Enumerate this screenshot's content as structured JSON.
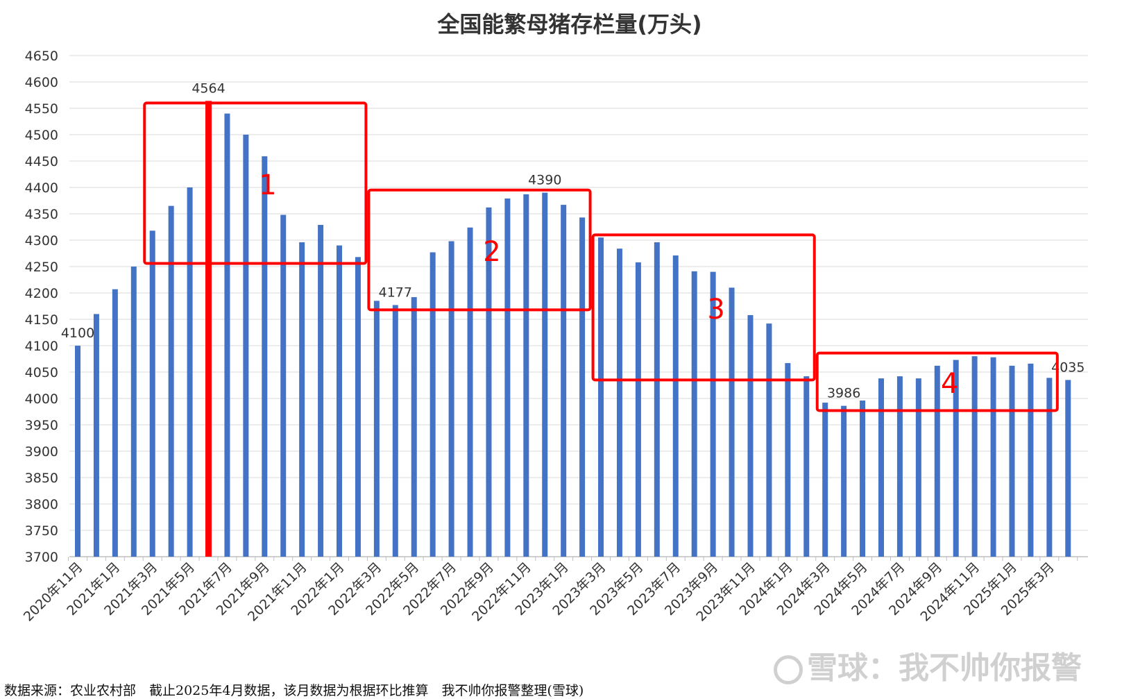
{
  "chart_data": {
    "type": "bar",
    "title": "全国能繁母猪存栏量(万头)",
    "ylim": [
      3700,
      4650
    ],
    "yticks": [
      3700,
      3750,
      3800,
      3850,
      3900,
      3950,
      4000,
      4050,
      4100,
      4150,
      4200,
      4250,
      4300,
      4350,
      4400,
      4450,
      4500,
      4550,
      4600,
      4650
    ],
    "grid": true,
    "categories": [
      "2020年11月",
      "2020年12月",
      "2021年1月",
      "2021年2月",
      "2021年3月",
      "2021年4月",
      "2021年5月",
      "2021年6月",
      "2021年7月",
      "2021年8月",
      "2021年9月",
      "2021年10月",
      "2021年11月",
      "2021年12月",
      "2022年1月",
      "2022年2月",
      "2022年3月",
      "2022年4月",
      "2022年5月",
      "2022年6月",
      "2022年7月",
      "2022年8月",
      "2022年9月",
      "2022年10月",
      "2022年11月",
      "2022年12月",
      "2023年1月",
      "2023年2月",
      "2023年3月",
      "2023年4月",
      "2023年5月",
      "2023年6月",
      "2023年7月",
      "2023年8月",
      "2023年9月",
      "2023年10月",
      "2023年11月",
      "2023年12月",
      "2024年1月",
      "2024年2月",
      "2024年3月",
      "2024年4月",
      "2024年5月",
      "2024年6月",
      "2024年7月",
      "2024年8月",
      "2024年9月",
      "2024年10月",
      "2024年11月",
      "2024年12月",
      "2025年1月",
      "2025年2月",
      "2025年3月",
      "2025年4月"
    ],
    "values": [
      4100,
      4160,
      4207,
      4250,
      4318,
      4365,
      4400,
      4564,
      4540,
      4500,
      4459,
      4348,
      4296,
      4329,
      4290,
      4268,
      4185,
      4177,
      4192,
      4277,
      4298,
      4324,
      4362,
      4379,
      4387,
      4390,
      4367,
      4343,
      4305,
      4284,
      4258,
      4296,
      4271,
      4241,
      4240,
      4210,
      4158,
      4142,
      4067,
      4042,
      3992,
      3986,
      3996,
      4038,
      4042,
      4038,
      4062,
      4073,
      4080,
      4078,
      4062,
      4066,
      4039,
      4035
    ],
    "highlight_index": 7,
    "bar_color": "#4472c4",
    "highlight_color": "#ff0000",
    "box_color": "#ff0000",
    "data_labels": [
      {
        "index": 0,
        "text": "4100"
      },
      {
        "index": 7,
        "text": "4564"
      },
      {
        "index": 25,
        "text": "4390"
      },
      {
        "index": 17,
        "text": "4177"
      },
      {
        "index": 41,
        "text": "3986"
      },
      {
        "index": 53,
        "text": "4035"
      }
    ],
    "annotations": [
      {
        "label": "1",
        "from_index": 4,
        "to_index": 15,
        "y_low": 4256,
        "y_high": 4560
      },
      {
        "label": "2",
        "from_index": 16,
        "to_index": 27,
        "y_low": 4168,
        "y_high": 4395
      },
      {
        "label": "3",
        "from_index": 28,
        "to_index": 39,
        "y_low": 4035,
        "y_high": 4310
      },
      {
        "label": "4",
        "from_index": 40,
        "to_index": 52,
        "y_low": 3977,
        "y_high": 4086
      }
    ]
  },
  "footer": {
    "source_text": "数据来源：农业农村部　截止2025年4月数据，该月数据为根据环比推算　我不帅你报警整理(雪球)"
  },
  "watermark": {
    "text": "雪球：我不帅你报警"
  }
}
